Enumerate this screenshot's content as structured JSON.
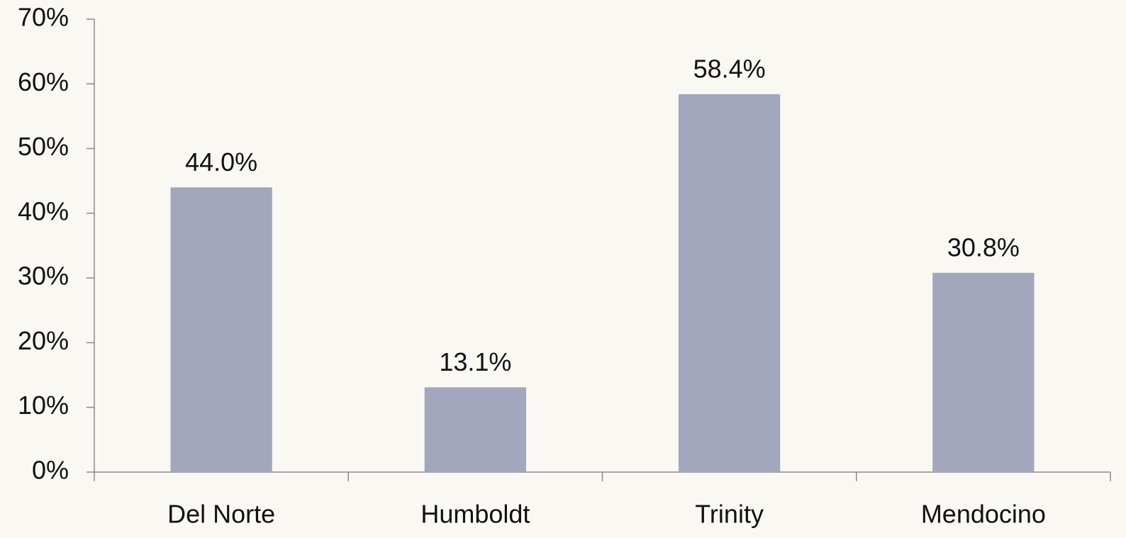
{
  "chart_data": {
    "type": "bar",
    "categories": [
      "Del Norte",
      "Humboldt",
      "Trinity",
      "Mendocino"
    ],
    "values": [
      44.0,
      13.1,
      58.4,
      30.8
    ],
    "value_labels": [
      "44.0%",
      "13.1%",
      "58.4%",
      "30.8%"
    ],
    "color": "#a2a7bd",
    "ylim": [
      0,
      70
    ],
    "yticks": [
      {
        "value": 0,
        "label": "0%"
      },
      {
        "value": 10,
        "label": "10%"
      },
      {
        "value": 20,
        "label": "20%"
      },
      {
        "value": 30,
        "label": "30%"
      },
      {
        "value": 40,
        "label": "40%"
      },
      {
        "value": 50,
        "label": "50%"
      },
      {
        "value": 60,
        "label": "60%"
      },
      {
        "value": 70,
        "label": "70%"
      }
    ],
    "grid": false
  }
}
